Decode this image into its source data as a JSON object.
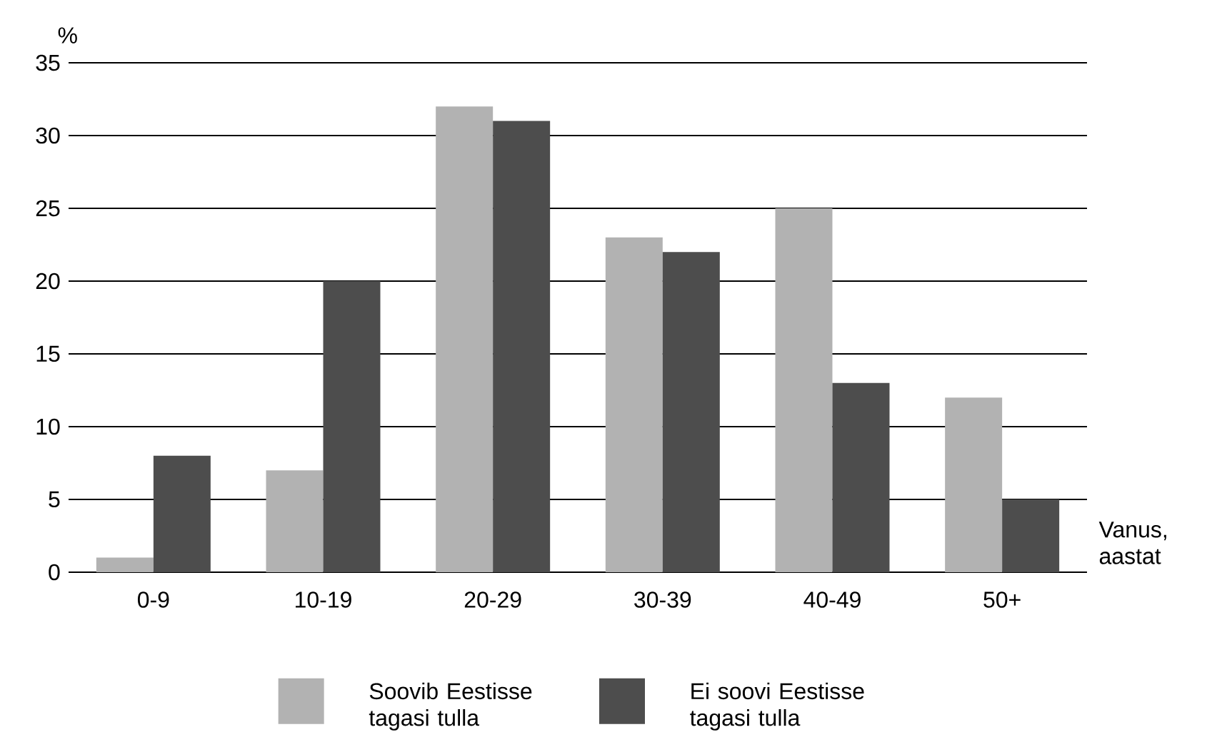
{
  "chart_data": {
    "type": "bar",
    "ylabel": "%",
    "xlabel": "Vanus, aastat",
    "categories": [
      "0-9",
      "10-19",
      "20-29",
      "30-39",
      "40-49",
      "50+"
    ],
    "series": [
      {
        "name": "Soovib Eestisse tagasi tulla",
        "color": "#b2b2b2",
        "values": [
          1,
          7,
          32,
          23,
          25,
          12
        ]
      },
      {
        "name": "Ei soovi Eestisse tagasi tulla",
        "color": "#4d4d4d",
        "values": [
          8,
          20,
          31,
          22,
          13,
          5
        ]
      }
    ],
    "ylim": [
      0,
      35
    ],
    "yticks": [
      0,
      5,
      10,
      15,
      20,
      25,
      30,
      35
    ],
    "grid": "y",
    "legend": "bottom"
  }
}
